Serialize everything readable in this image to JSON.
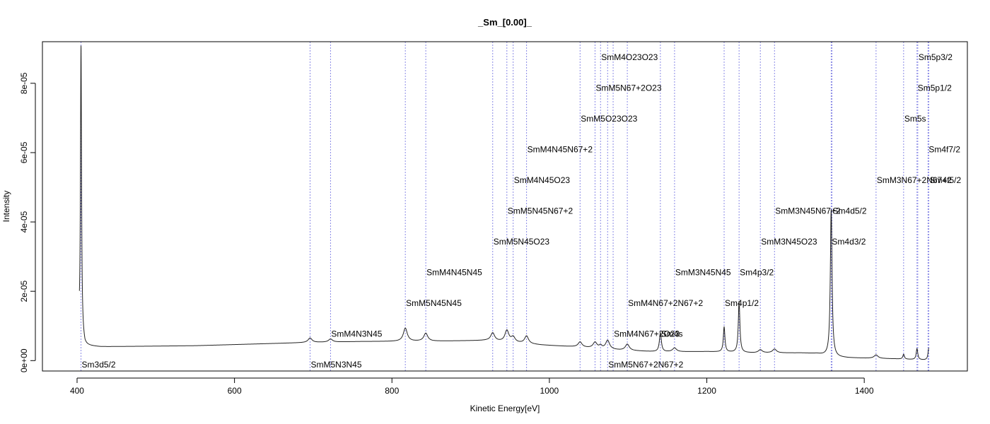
{
  "chart_data": {
    "type": "line",
    "title": "_Sm_[0.00]_",
    "xlabel": "Kinetic Energy[eV]",
    "ylabel": "Intensity",
    "xlim": [
      356,
      1531
    ],
    "ylim": [
      -3e-06,
      9.2e-05
    ],
    "x_ticks": [
      400,
      600,
      800,
      1000,
      1200,
      1400
    ],
    "x_tick_labels": [
      "400",
      "600",
      "800",
      "1000",
      "1200",
      "1400"
    ],
    "y_ticks": [
      0,
      2e-05,
      4e-05,
      6e-05,
      8e-05
    ],
    "y_tick_labels": [
      "0e+00",
      "2e-05",
      "4e-05",
      "6e-05",
      "8e-05"
    ],
    "series": [
      {
        "color": "#222222",
        "baseline": [
          [
            403,
            8.6e-06
          ],
          [
            410,
            4.3e-06
          ],
          [
            430,
            4e-06
          ],
          [
            550,
            4.3e-06
          ],
          [
            690,
            5.2e-06
          ],
          [
            760,
            5.5e-06
          ],
          [
            850,
            5.6e-06
          ],
          [
            920,
            5.8e-06
          ],
          [
            990,
            4.5e-06
          ],
          [
            1030,
            4e-06
          ],
          [
            1090,
            3e-06
          ],
          [
            1140,
            2.5e-06
          ],
          [
            1200,
            2.6e-06
          ],
          [
            1260,
            2.2e-06
          ],
          [
            1320,
            2.2e-06
          ],
          [
            1340,
            2e-06
          ],
          [
            1360,
            1e-06
          ],
          [
            1380,
            8e-07
          ],
          [
            1440,
            5e-07
          ],
          [
            1482,
            1e-07
          ]
        ],
        "peaks": [
          [
            405,
            8.35e-05,
            0.8
          ],
          [
            696,
            1.3e-06,
            3
          ],
          [
            722,
            9e-07,
            3
          ],
          [
            817,
            3.8e-06,
            3
          ],
          [
            843,
            2.3e-06,
            3
          ],
          [
            928,
            2.3e-06,
            3
          ],
          [
            946,
            3.3e-06,
            3
          ],
          [
            954,
            1.5e-06,
            3
          ],
          [
            971,
            2.2e-06,
            3
          ],
          [
            1039,
            1.5e-06,
            3
          ],
          [
            1058,
            1.7e-06,
            3
          ],
          [
            1065,
            8e-07,
            2
          ],
          [
            1074,
            2.5e-06,
            3
          ],
          [
            1099,
            1.8e-06,
            3
          ],
          [
            1141,
            5.5e-06,
            1.5
          ],
          [
            1159,
            1.1e-06,
            3
          ],
          [
            1222,
            7.2e-06,
            1.2
          ],
          [
            1241,
            1.48e-05,
            1.2
          ],
          [
            1268,
            9e-07,
            3
          ],
          [
            1286,
            1.1e-06,
            3
          ],
          [
            1358,
            4.25e-05,
            1.3
          ],
          [
            1415,
            1e-06,
            3
          ],
          [
            1450,
            1.4e-06,
            1.2
          ],
          [
            1467,
            3.2e-06,
            1.2
          ],
          [
            1482,
            3.5e-06,
            1.2
          ]
        ]
      }
    ],
    "peak_markers": [
      {
        "x": 405,
        "label": "Sm3d5/2",
        "y": -1.2e-06
      },
      {
        "x": 696,
        "label": "SmM5N3N45",
        "y": -1.2e-06
      },
      {
        "x": 722,
        "label": "SmM4N3N45",
        "y": 7.7e-06
      },
      {
        "x": 817,
        "label": "SmM5N45N45",
        "y": 1.66e-05
      },
      {
        "x": 843,
        "label": "SmM4N45N45",
        "y": 2.54e-05
      },
      {
        "x": 928,
        "label": "SmM5N45O23",
        "y": 3.43e-05
      },
      {
        "x": 946,
        "label": "SmM5N45N67+2",
        "y": 4.32e-05
      },
      {
        "x": 954,
        "label": "SmM4N45O23",
        "y": 5.2e-05
      },
      {
        "x": 971,
        "label": "SmM4N45N67+2",
        "y": 6.09e-05
      },
      {
        "x": 1039,
        "label": "SmM5O23O23",
        "y": 6.98e-05
      },
      {
        "x": 1058,
        "label": "SmM5N67+2O23",
        "y": 7.86e-05
      },
      {
        "x": 1065,
        "label": "SmM4O23O23",
        "y": 8.75e-05
      },
      {
        "x": 1074,
        "label": "SmM5N67+2N67+2",
        "y": -1.2e-06
      },
      {
        "x": 1081,
        "label": "SmM4N67+2O23",
        "y": 7.7e-06
      },
      {
        "x": 1099,
        "label": "SmM4N67+2N67+2",
        "y": 1.66e-05
      },
      {
        "x": 1141,
        "label": "Sm4s",
        "y": 7.7e-06
      },
      {
        "x": 1159,
        "label": "SmM3N45N45",
        "y": 2.54e-05
      },
      {
        "x": 1222,
        "label": "Sm4p1/2",
        "y": 1.66e-05
      },
      {
        "x": 1241,
        "label": "Sm4p3/2",
        "y": 2.54e-05
      },
      {
        "x": 1268,
        "label": "SmM3N45O23",
        "y": 3.43e-05
      },
      {
        "x": 1286,
        "label": "SmM3N45N67+2",
        "y": 4.32e-05
      },
      {
        "x": 1358,
        "label": "Sm4d3/2",
        "y": 3.43e-05
      },
      {
        "x": 1359,
        "label": "Sm4d5/2",
        "y": 4.32e-05
      },
      {
        "x": 1415,
        "label": "SmM3N67+2N67+2",
        "y": 5.2e-05
      },
      {
        "x": 1450,
        "label": "Sm5s",
        "y": 6.98e-05
      },
      {
        "x": 1467,
        "label": "Sm5p1/2",
        "y": 7.86e-05
      },
      {
        "x": 1468,
        "label": "Sm5p3/2",
        "y": 8.75e-05
      },
      {
        "x": 1481,
        "label": "Sm4f7/2",
        "y": 6.09e-05
      },
      {
        "x": 1482,
        "label": "Sm4f5/2",
        "y": 5.2e-05
      }
    ],
    "grid": false,
    "marker_line_color": "#8a8ae6",
    "legend": "none"
  }
}
